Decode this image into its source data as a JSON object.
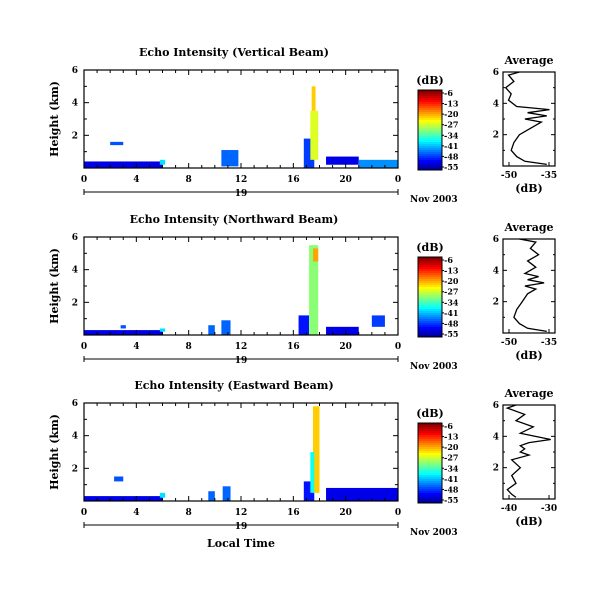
{
  "chart_data": [
    {
      "type": "heatmap",
      "beam": "vertical",
      "title": "Echo Intensity (Vertical Beam)",
      "ylabel": "Height (km)",
      "ytick_labels": [
        "2",
        "4",
        "6"
      ],
      "xtick_labels": [
        "0",
        "4",
        "8",
        "12",
        "16",
        "20",
        "0"
      ],
      "date_day": "19",
      "date_month": "Nov 2003",
      "xlim": [
        0,
        24
      ],
      "ylim": [
        0,
        6
      ],
      "colorbar": {
        "label": "(dB)",
        "ticks": [
          "-6",
          "-13",
          "-20",
          "-27",
          "-34",
          "-41",
          "-48",
          "-55"
        ],
        "range": [
          -55,
          -6
        ]
      },
      "echoes": [
        {
          "x": [
            0.0,
            6.0
          ],
          "y": [
            0.0,
            0.4
          ],
          "value": -50
        },
        {
          "x": [
            2.0,
            3.0
          ],
          "y": [
            1.4,
            1.6
          ],
          "value": -45
        },
        {
          "x": [
            5.8,
            6.2
          ],
          "y": [
            0.2,
            0.5
          ],
          "value": -38
        },
        {
          "x": [
            10.5,
            11.8
          ],
          "y": [
            0.1,
            1.1
          ],
          "value": -44
        },
        {
          "x": [
            16.8,
            17.6
          ],
          "y": [
            0.0,
            1.8
          ],
          "value": -46
        },
        {
          "x": [
            17.3,
            17.9
          ],
          "y": [
            0.5,
            3.5
          ],
          "value": -26
        },
        {
          "x": [
            17.4,
            17.7
          ],
          "y": [
            3.5,
            5.0
          ],
          "value": -22
        },
        {
          "x": [
            18.5,
            21.0
          ],
          "y": [
            0.2,
            0.7
          ],
          "value": -50
        },
        {
          "x": [
            21.0,
            24.0
          ],
          "y": [
            0.0,
            0.5
          ],
          "value": -42
        }
      ],
      "average_profile": {
        "title": "Average",
        "xlabel": "(dB)",
        "xtick_labels": [
          "-50",
          "-35"
        ],
        "xlim": [
          -52,
          -33
        ],
        "ytick_labels": [
          "2",
          "4",
          "6"
        ],
        "ylim": [
          0,
          6
        ],
        "height": [
          0.1,
          0.3,
          0.6,
          1.0,
          1.5,
          2.0,
          2.5,
          2.8,
          3.0,
          3.2,
          3.4,
          3.6,
          3.8,
          4.2,
          4.6,
          5.0,
          5.4,
          5.8,
          6.0
        ],
        "value": [
          -36,
          -44,
          -47,
          -49,
          -48,
          -46,
          -41,
          -38,
          -44,
          -36,
          -43,
          -35,
          -47,
          -50,
          -49,
          -51,
          -48,
          -50,
          -46
        ]
      }
    },
    {
      "type": "heatmap",
      "beam": "northward",
      "title": "Echo Intensity (Northward Beam)",
      "ylabel": "Height (km)",
      "ytick_labels": [
        "2",
        "4",
        "6"
      ],
      "xtick_labels": [
        "0",
        "4",
        "8",
        "12",
        "16",
        "20",
        "0"
      ],
      "date_day": "19",
      "date_month": "Nov 2003",
      "xlim": [
        0,
        24
      ],
      "ylim": [
        0,
        6
      ],
      "colorbar": {
        "label": "(dB)",
        "ticks": [
          "-6",
          "-13",
          "-20",
          "-27",
          "-34",
          "-41",
          "-48",
          "-55"
        ],
        "range": [
          -55,
          -6
        ]
      },
      "echoes": [
        {
          "x": [
            0.0,
            6.0
          ],
          "y": [
            0.0,
            0.3
          ],
          "value": -50
        },
        {
          "x": [
            2.8,
            3.2
          ],
          "y": [
            0.4,
            0.6
          ],
          "value": -45
        },
        {
          "x": [
            5.8,
            6.2
          ],
          "y": [
            0.2,
            0.4
          ],
          "value": -38
        },
        {
          "x": [
            9.5,
            10.0
          ],
          "y": [
            0.0,
            0.6
          ],
          "value": -44
        },
        {
          "x": [
            10.5,
            11.2
          ],
          "y": [
            0.0,
            0.9
          ],
          "value": -44
        },
        {
          "x": [
            16.4,
            17.2
          ],
          "y": [
            0.0,
            1.2
          ],
          "value": -48
        },
        {
          "x": [
            17.2,
            17.9
          ],
          "y": [
            0.0,
            5.5
          ],
          "value": -30
        },
        {
          "x": [
            17.5,
            17.9
          ],
          "y": [
            4.5,
            5.3
          ],
          "value": -20
        },
        {
          "x": [
            18.5,
            21.0
          ],
          "y": [
            0.0,
            0.5
          ],
          "value": -50
        },
        {
          "x": [
            22.0,
            23.0
          ],
          "y": [
            0.5,
            1.2
          ],
          "value": -46
        }
      ],
      "average_profile": {
        "title": "Average",
        "xlabel": "(dB)",
        "xtick_labels": [
          "-50",
          "-35"
        ],
        "xlim": [
          -52,
          -33
        ],
        "ytick_labels": [
          "2",
          "4",
          "6"
        ],
        "ylim": [
          0,
          6
        ],
        "height": [
          0.1,
          0.3,
          0.6,
          1.0,
          1.5,
          2.0,
          2.5,
          2.8,
          3.0,
          3.2,
          3.4,
          3.6,
          3.8,
          4.2,
          4.6,
          5.0,
          5.4,
          5.8,
          6.0
        ],
        "value": [
          -36,
          -43,
          -46,
          -48,
          -47,
          -45,
          -43,
          -40,
          -44,
          -37,
          -43,
          -39,
          -44,
          -40,
          -43,
          -39,
          -42,
          -40,
          -46
        ]
      }
    },
    {
      "type": "heatmap",
      "beam": "eastward",
      "title": "Echo Intensity (Eastward Beam)",
      "ylabel": "Height (km)",
      "ytick_labels": [
        "2",
        "4",
        "6"
      ],
      "xtick_labels": [
        "0",
        "4",
        "8",
        "12",
        "16",
        "20",
        "0"
      ],
      "xlabel": "Local Time",
      "date_day": "19",
      "date_month": "Nov 2003",
      "xlim": [
        0,
        24
      ],
      "ylim": [
        0,
        6
      ],
      "colorbar": {
        "label": "(dB)",
        "ticks": [
          "-6",
          "-13",
          "-20",
          "-27",
          "-34",
          "-41",
          "-48",
          "-55"
        ],
        "range": [
          -55,
          -6
        ]
      },
      "echoes": [
        {
          "x": [
            0.0,
            6.0
          ],
          "y": [
            0.0,
            0.3
          ],
          "value": -50
        },
        {
          "x": [
            2.3,
            3.0
          ],
          "y": [
            1.2,
            1.5
          ],
          "value": -45
        },
        {
          "x": [
            5.8,
            6.2
          ],
          "y": [
            0.2,
            0.5
          ],
          "value": -38
        },
        {
          "x": [
            9.5,
            10.0
          ],
          "y": [
            0.0,
            0.6
          ],
          "value": -44
        },
        {
          "x": [
            10.6,
            11.2
          ],
          "y": [
            0.0,
            0.9
          ],
          "value": -44
        },
        {
          "x": [
            16.8,
            17.6
          ],
          "y": [
            0.0,
            1.2
          ],
          "value": -48
        },
        {
          "x": [
            17.5,
            18.0
          ],
          "y": [
            0.5,
            5.8
          ],
          "value": -22
        },
        {
          "x": [
            17.3,
            17.6
          ],
          "y": [
            0.5,
            3.0
          ],
          "value": -36
        },
        {
          "x": [
            18.5,
            24.0
          ],
          "y": [
            0.0,
            0.8
          ],
          "value": -50
        }
      ],
      "average_profile": {
        "title": "Average",
        "xlabel": "(dB)",
        "xtick_labels": [
          "-40",
          "-30"
        ],
        "xlim": [
          -41,
          -29
        ],
        "ytick_labels": [
          "2",
          "4",
          "6"
        ],
        "ylim": [
          0,
          6
        ],
        "height": [
          0.1,
          0.3,
          0.6,
          1.0,
          1.5,
          2.0,
          2.5,
          2.8,
          3.0,
          3.2,
          3.4,
          3.6,
          3.8,
          4.2,
          4.6,
          5.0,
          5.4,
          5.8,
          6.0
        ],
        "value": [
          -38,
          -39,
          -40,
          -38,
          -39,
          -37,
          -39,
          -35,
          -37,
          -36,
          -37,
          -35,
          -30,
          -37,
          -34,
          -38,
          -36,
          -40,
          -38
        ]
      }
    }
  ]
}
